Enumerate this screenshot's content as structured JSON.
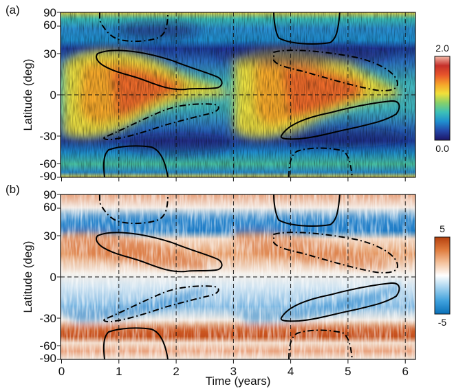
{
  "chart_data": [
    {
      "type": "heatmap",
      "panel_label": "(a)",
      "ylabel": "Latitude (deg)",
      "y_ticks": [
        "90",
        "60",
        "30",
        "0",
        "-30",
        "-60",
        "-90"
      ],
      "colorbar": {
        "max_label": "2.0",
        "min_label": "0.0",
        "colors": [
          "#1d1466",
          "#2447a8",
          "#1f8fcf",
          "#3cc0b8",
          "#86d06a",
          "#f1e03a",
          "#f6a32a",
          "#e8552b",
          "#c5302a",
          "#f4b9a8"
        ]
      },
      "bands": [
        {
          "feature": "equatorward activity belt, cycle 1",
          "time": [
            0.0,
            3.0
          ],
          "lat_center_start": 26,
          "lat_center_end": 8
        },
        {
          "feature": "equatorward activity belt, cycle 2",
          "time": [
            3.0,
            6.2
          ],
          "lat_center_start": 26,
          "lat_center_end": 8
        }
      ]
    },
    {
      "type": "heatmap",
      "panel_label": "(b)",
      "ylabel": "Latitude (deg)",
      "y_ticks": [
        "90",
        "60",
        "30",
        "0",
        "-30",
        "-60",
        "-90"
      ],
      "xlabel": "Time (years)",
      "x_ticks": [
        "0",
        "1",
        "2",
        "3",
        "4",
        "5",
        "6"
      ],
      "xlim": [
        0,
        6.2
      ],
      "colorbar": {
        "max_label": "5",
        "min_label": "-5",
        "colors": [
          "#0a70b8",
          "#3ea0dc",
          "#9fd0ee",
          "#ffffff",
          "#f4c29c",
          "#e07c3e",
          "#b5400e"
        ]
      }
    }
  ]
}
